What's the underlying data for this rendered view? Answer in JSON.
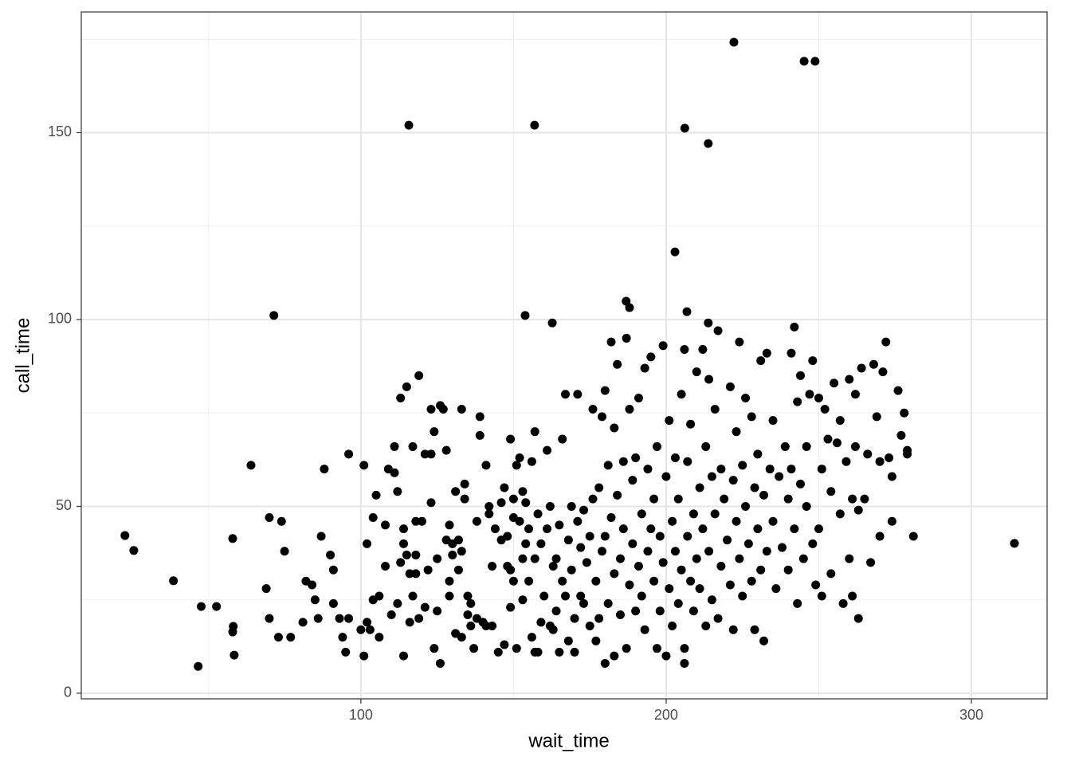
{
  "chart_data": {
    "type": "scatter",
    "x_label": "wait_time",
    "y_label": "call_time",
    "color": "#000000",
    "grid": true,
    "xlim": [
      8.4,
      324.8
    ],
    "ylim": [
      -1.5,
      182.3
    ],
    "xticks": [
      100,
      200,
      300
    ],
    "yticks": [
      0,
      50,
      100,
      150
    ],
    "x": [
      222.2,
      245.2,
      248.8,
      115.7,
      156.9,
      206.1,
      213.8,
      202.9,
      71.5,
      153.8,
      162.7,
      186.9,
      188,
      206.8,
      213.8,
      314.1,
      22.7,
      25.6,
      38.6,
      46.7,
      47.7,
      52.7,
      58,
      58.2,
      58,
      58.5,
      64,
      69,
      70,
      70,
      73,
      74,
      75,
      77,
      81,
      82,
      84,
      85,
      86,
      87,
      88,
      90,
      91,
      91,
      93,
      94,
      95,
      96,
      96,
      100,
      101,
      101,
      102,
      102,
      103,
      104,
      104,
      105,
      106,
      106,
      108,
      108,
      109,
      110,
      111,
      111,
      112,
      112,
      113,
      113,
      114,
      114,
      114,
      115,
      115,
      116,
      116,
      117,
      117,
      118,
      118,
      118,
      119,
      119,
      120,
      121,
      121,
      122,
      123,
      123,
      123,
      124,
      124,
      125,
      125,
      126,
      126,
      127,
      128,
      128,
      129,
      129,
      129,
      130,
      130,
      131,
      131,
      132,
      132,
      133,
      133,
      133,
      134,
      134,
      135,
      135,
      136,
      136,
      137,
      138,
      138,
      139,
      139,
      140,
      141,
      141,
      142,
      142,
      143,
      143,
      144,
      145,
      146,
      146,
      147,
      147,
      148,
      148,
      149,
      149,
      149,
      150,
      150,
      150,
      151,
      151,
      152,
      152,
      153,
      153,
      153,
      154,
      154,
      155,
      155,
      156,
      156,
      157,
      157,
      157,
      158,
      158,
      159,
      159,
      160,
      161,
      161,
      162,
      162,
      163,
      163,
      164,
      164,
      165,
      165,
      166,
      166,
      167,
      167,
      168,
      168,
      169,
      169,
      170,
      170,
      171,
      171,
      172,
      172,
      173,
      173,
      174,
      175,
      175,
      176,
      176,
      177,
      177,
      178,
      178,
      179,
      179,
      180,
      180,
      180,
      181,
      181,
      182,
      182,
      183,
      183,
      183,
      184,
      184,
      185,
      185,
      186,
      186,
      187,
      187,
      188,
      188,
      189,
      189,
      190,
      190,
      191,
      191,
      192,
      192,
      193,
      193,
      194,
      194,
      195,
      195,
      196,
      196,
      197,
      197,
      198,
      198,
      199,
      199,
      200,
      200,
      201,
      201,
      202,
      202,
      203,
      203,
      204,
      204,
      205,
      205,
      206,
      206,
      206,
      207,
      207,
      208,
      208,
      209,
      209,
      210,
      210,
      211,
      211,
      212,
      212,
      213,
      213,
      214,
      214,
      215,
      215,
      216,
      216,
      217,
      217,
      218,
      218,
      219,
      220,
      221,
      221,
      222,
      222,
      223,
      223,
      224,
      224,
      225,
      225,
      226,
      226,
      227,
      228,
      228,
      229,
      229,
      230,
      230,
      231,
      231,
      232,
      232,
      233,
      233,
      234,
      235,
      235,
      236,
      237,
      238,
      239,
      240,
      240,
      241,
      241,
      242,
      242,
      243,
      243,
      244,
      244,
      245,
      246,
      246,
      247,
      248,
      248,
      249,
      250,
      250,
      251,
      251,
      252,
      253,
      254,
      254,
      255,
      256,
      257,
      257,
      258,
      259,
      260,
      260,
      261,
      261,
      262,
      262,
      263,
      263,
      264,
      265,
      266,
      267,
      268,
      269,
      270,
      270,
      271,
      272,
      273,
      274,
      274,
      276,
      277,
      278,
      279,
      279,
      281
    ],
    "values": [
      174.2,
      169.1,
      169.1,
      152,
      152,
      151.2,
      147.1,
      118.1,
      101.1,
      101.1,
      99.1,
      104.9,
      103.2,
      102.1,
      99.1,
      40.1,
      42.2,
      38.2,
      30.1,
      7.2,
      23.2,
      23.2,
      41.4,
      17.9,
      16.4,
      10.2,
      61,
      28,
      47,
      20,
      15,
      46,
      38,
      15,
      19,
      30,
      29,
      25,
      20,
      42,
      60,
      37,
      33,
      24,
      20,
      15,
      11,
      64,
      20,
      17,
      10,
      61,
      19,
      40,
      17,
      25,
      47,
      53,
      26,
      15,
      34,
      45,
      60,
      21,
      59,
      66,
      24,
      54,
      35,
      79,
      10,
      40,
      44,
      37,
      82,
      32,
      19,
      66,
      26,
      46,
      37,
      32,
      20,
      85,
      46,
      23,
      64,
      33,
      51,
      64,
      76,
      70,
      12,
      22,
      36,
      8,
      77,
      76,
      41,
      65,
      45,
      30,
      26,
      37,
      40,
      16,
      54,
      33,
      41,
      15,
      76,
      38,
      56,
      52,
      26,
      21,
      24,
      18,
      12,
      20,
      46,
      74,
      69,
      19,
      18,
      61,
      50,
      48,
      34,
      18,
      44,
      11,
      41,
      51,
      13,
      55,
      34,
      42,
      33,
      68,
      23,
      52,
      30,
      47,
      12,
      61,
      46,
      63,
      36,
      54,
      25,
      40,
      51,
      44,
      30,
      15,
      62,
      11,
      36,
      70,
      48,
      11,
      19,
      40,
      26,
      44,
      65,
      18,
      50,
      17,
      34,
      36,
      22,
      11,
      45,
      30,
      68,
      26,
      80,
      14,
      41,
      50,
      33,
      20,
      11,
      80,
      46,
      26,
      39,
      49,
      24,
      35,
      42,
      18,
      76,
      52,
      14,
      30,
      55,
      20,
      74,
      38,
      8,
      42,
      81,
      24,
      61,
      47,
      94,
      10,
      32,
      71,
      88,
      53,
      21,
      36,
      62,
      44,
      12,
      95,
      29,
      76,
      40,
      57,
      22,
      63,
      34,
      79,
      48,
      26,
      87,
      17,
      38,
      60,
      44,
      90,
      30,
      52,
      12,
      66,
      22,
      42,
      93,
      35,
      10,
      58,
      28,
      73,
      46,
      18,
      38,
      63,
      24,
      52,
      80,
      33,
      12,
      8,
      92,
      42,
      62,
      30,
      72,
      48,
      22,
      36,
      86,
      55,
      28,
      92,
      44,
      18,
      66,
      38,
      84,
      58,
      25,
      76,
      48,
      20,
      97,
      34,
      60,
      52,
      41,
      82,
      29,
      57,
      17,
      70,
      46,
      94,
      36,
      61,
      26,
      79,
      50,
      40,
      74,
      30,
      55,
      17,
      64,
      44,
      33,
      89,
      14,
      53,
      91,
      38,
      60,
      73,
      46,
      28,
      58,
      39,
      66,
      33,
      52,
      91,
      60,
      98,
      44,
      78,
      24,
      85,
      56,
      36,
      66,
      50,
      80,
      89,
      40,
      29,
      79,
      44,
      60,
      26,
      76,
      68,
      32,
      54,
      83,
      67,
      48,
      73,
      24,
      62,
      84,
      36,
      26,
      52,
      80,
      66,
      20,
      49,
      87,
      52,
      64,
      35,
      88,
      74,
      42,
      62,
      86,
      94,
      63,
      58,
      46,
      81,
      69,
      75,
      65,
      64,
      42
    ]
  }
}
